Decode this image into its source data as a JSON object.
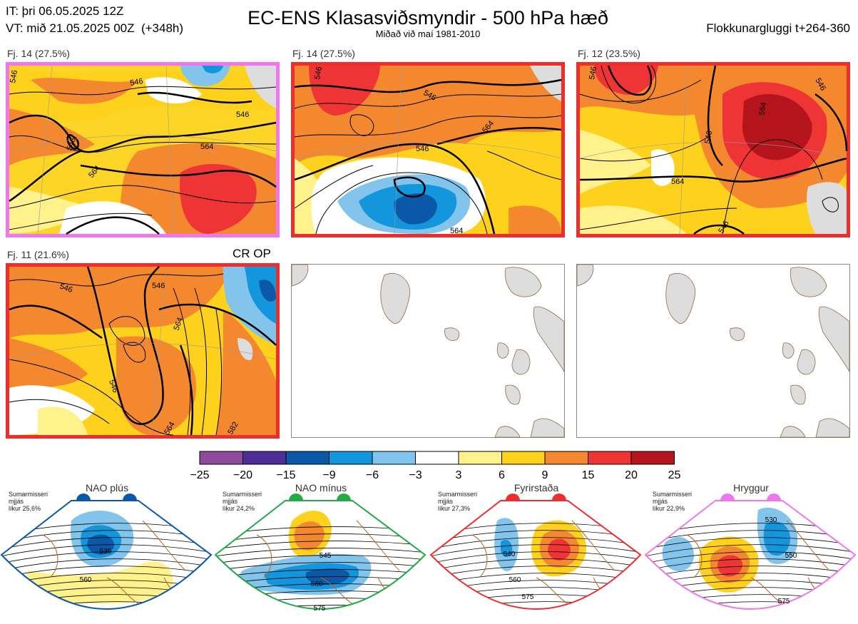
{
  "header": {
    "it": "IT: þri 06.05.2025 12Z",
    "vt": "VT: mið 21.05.2025 00Z  (+348h)",
    "title": "EC-ENS Klasasviðsmyndir - 500 hPa hæð",
    "subtitle": "Miðað við maí 1981-2010",
    "window": "Flokkunargluggi t+264-360"
  },
  "panels": [
    {
      "label": "Fj. 14 (27.5%)",
      "border_color": "#ee77ee"
    },
    {
      "label": "Fj. 14 (27.5%)",
      "border_color": "#ee2d2d"
    },
    {
      "label": "Fj. 12 (23.5%)",
      "border_color": "#ee2d2d"
    },
    {
      "label": "Fj. 11 (21.6%)",
      "border_color": "#ee2d2d"
    }
  ],
  "crop_label": "CR OP",
  "colorbar": {
    "ticks": [
      "−25",
      "−20",
      "−15",
      "−9",
      "−6",
      "−3",
      "3",
      "6",
      "9",
      "15",
      "20",
      "25"
    ],
    "colors": [
      "#8e4b9e",
      "#4f2d96",
      "#0a59a8",
      "#1496dc",
      "#82c4ec",
      "#ffffff",
      "#fff18c",
      "#fdd11c",
      "#f4882e",
      "#ee3434",
      "#b4141c"
    ]
  },
  "regimes": [
    {
      "name": "NAO plús",
      "note": [
        "Sumarmisseri",
        "mjjás",
        "líkur 25,6%"
      ],
      "color": "#0a59a8",
      "contours": [
        "535",
        "560"
      ]
    },
    {
      "name": "NAO mínus",
      "note": [
        "Sumarmisseri",
        "mjjás",
        "líkur 24,2%"
      ],
      "color": "#22aa44",
      "contours": [
        "545",
        "560",
        "575"
      ]
    },
    {
      "name": "Fyrirstaða",
      "note": [
        "Sumarmisseri",
        "mjjás",
        "líkur 27,3%"
      ],
      "color": "#ee2d2d",
      "contours": [
        "540",
        "560",
        "575"
      ]
    },
    {
      "name": "Hryggur",
      "note": [
        "Sumarmisseri",
        "mjjás",
        "líkur 22,9%"
      ],
      "color": "#ee77ee",
      "contours": [
        "530",
        "550",
        "575"
      ]
    }
  ],
  "chart_data": {
    "type": "heatmap",
    "title": "EC-ENS Klasasviðsmyndir - 500 hPa hæð",
    "colorbar_ticks": [
      -25,
      -20,
      -15,
      -9,
      -6,
      -3,
      3,
      6,
      9,
      15,
      20,
      25
    ],
    "clusters": [
      {
        "label": "Fj. 14 (27.5%)",
        "contour_labels": [
          "546",
          "546",
          "546",
          "564",
          "564",
          "546"
        ]
      },
      {
        "label": "Fj. 14 (27.5%)",
        "contour_labels": [
          "546",
          "546",
          "564",
          "546",
          "564"
        ]
      },
      {
        "label": "Fj. 12 (23.5%)",
        "contour_labels": [
          "546",
          "546",
          "564",
          "546",
          "564",
          "546"
        ]
      },
      {
        "label": "Fj. 11 (21.6%)",
        "contour_labels": [
          "546",
          "546",
          "564",
          "546",
          "564",
          "582"
        ]
      }
    ],
    "regimes": [
      {
        "name": "NAO plús",
        "probability": 25.6
      },
      {
        "name": "NAO mínus",
        "probability": 24.2
      },
      {
        "name": "Fyrirstaða",
        "probability": 27.3
      },
      {
        "name": "Hryggur",
        "probability": 22.9
      }
    ]
  }
}
